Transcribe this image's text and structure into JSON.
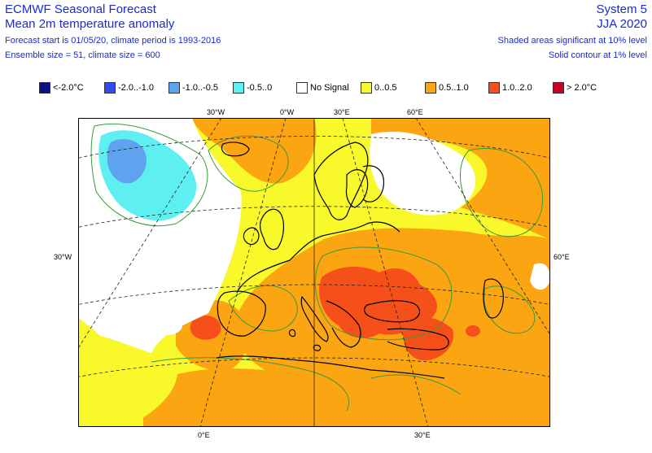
{
  "header": {
    "org_title": "ECMWF Seasonal Forecast",
    "product": "Mean 2m temperature anomaly",
    "forecast_info": "Forecast start is 01/05/20, climate period is 1993-2016",
    "ensemble_info": "Ensemble size = 51, climate size = 600",
    "system": "System 5",
    "season": "JJA 2020",
    "sig_note_1": "Shaded areas significant at 10% level",
    "sig_note_2": "Solid contour at 1% level"
  },
  "legend": [
    {
      "label": "<-2.0°C",
      "color": "#0a0f8a"
    },
    {
      "label": "-2.0..-1.0",
      "color": "#2f4cf0"
    },
    {
      "label": "-1.0..-0.5",
      "color": "#5fa2f0"
    },
    {
      "label": "-0.5..0",
      "color": "#5ef0f0"
    },
    {
      "label": "No Signal",
      "color": "#ffffff"
    },
    {
      "label": "0..0.5",
      "color": "#f8f82a"
    },
    {
      "label": "0.5..1.0",
      "color": "#fba512"
    },
    {
      "label": "1.0..2.0",
      "color": "#f6501a"
    },
    {
      "label": "> 2.0°C",
      "color": "#cc0022"
    }
  ],
  "map": {
    "region": "Europe",
    "axis_labels": {
      "top_30w": "30°W",
      "top_0w": "0°W",
      "top_30e": "30°E",
      "top_60e": "60°E",
      "left_30w": "30°W",
      "right_60e": "60°E",
      "bottom_0e": "0°E",
      "bottom_30e": "30°E"
    },
    "colors": {
      "yellow": "#f8f82a",
      "orange": "#fba512",
      "red": "#f6501a",
      "cyan": "#5ef0f0",
      "lightblue": "#5fa2f0",
      "white": "#ffffff",
      "coast": "#000000",
      "contour": "#3a9a3a",
      "grid": "#222222"
    }
  }
}
